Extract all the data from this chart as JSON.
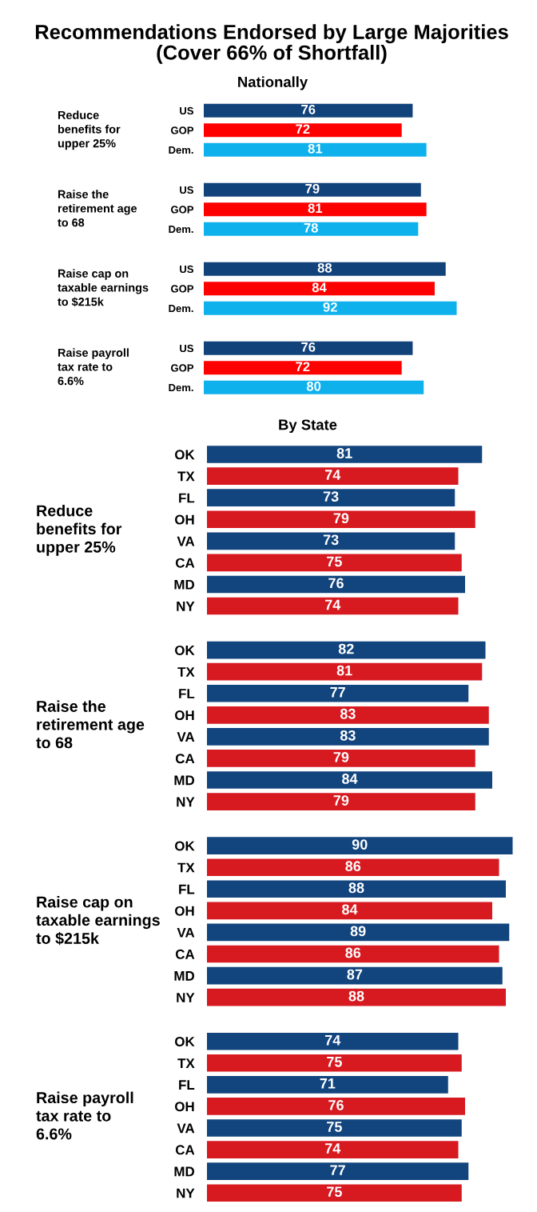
{
  "chart_data": [
    {
      "type": "bar",
      "orientation": "horizontal",
      "title": "Recommendations Endorsed by Large Majorities\n(Cover 66% of Shortfall)",
      "subtitle": "Nationally",
      "ylabel": "Reduce\nbenefits for\nupper 25%",
      "categories": [
        "US",
        "GOP",
        "Dem."
      ],
      "values": [
        76,
        72,
        81
      ],
      "colors": [
        "#12427a",
        "#fe0000",
        "#0eb1ec"
      ],
      "tick_labels": "y",
      "data_labels": true
    },
    {
      "type": "bar",
      "orientation": "horizontal",
      "ylabel": "Raise the\nretirement age\nto 68",
      "categories": [
        "US",
        "GOP",
        "Dem."
      ],
      "values": [
        79,
        81,
        78
      ],
      "colors": [
        "#12427a",
        "#fe0000",
        "#0eb1ec"
      ],
      "tick_labels": "y",
      "data_labels": true
    },
    {
      "type": "bar",
      "orientation": "horizontal",
      "ylabel": "Raise cap on\ntaxable earnings\nto $215k",
      "categories": [
        "US",
        "GOP",
        "Dem."
      ],
      "values": [
        88,
        84,
        92
      ],
      "colors": [
        "#12427a",
        "#fe0000",
        "#0eb1ec"
      ],
      "tick_labels": "y",
      "data_labels": true
    },
    {
      "type": "bar",
      "orientation": "horizontal",
      "ylabel": "Raise payroll\ntax rate to\n6.6%",
      "categories": [
        "US",
        "GOP",
        "Dem."
      ],
      "values": [
        76,
        72,
        80
      ],
      "colors": [
        "#12427a",
        "#fe0000",
        "#0eb1ec"
      ],
      "tick_labels": "y",
      "data_labels": true
    },
    {
      "type": "bar",
      "orientation": "horizontal",
      "subtitle": "By State",
      "ylabel": "Reduce\nbenefits for\nupper 25%",
      "categories": [
        "OK",
        "TX",
        "FL",
        "OH",
        "VA",
        "CA",
        "MD",
        "NY"
      ],
      "values": [
        81,
        74,
        73,
        79,
        73,
        75,
        76,
        74
      ],
      "colors": [
        "#12447e",
        "#d71920",
        "#12447e",
        "#d71920",
        "#12447e",
        "#d71920",
        "#12447e",
        "#d71920"
      ],
      "tick_labels": "y",
      "data_labels": true
    },
    {
      "type": "bar",
      "orientation": "horizontal",
      "ylabel": "Raise the\nretirement age\nto 68",
      "categories": [
        "OK",
        "TX",
        "FL",
        "OH",
        "VA",
        "CA",
        "MD",
        "NY"
      ],
      "values": [
        82,
        81,
        77,
        83,
        83,
        79,
        84,
        79
      ],
      "colors": [
        "#12447e",
        "#d71920",
        "#12447e",
        "#d71920",
        "#12447e",
        "#d71920",
        "#12447e",
        "#d71920"
      ],
      "tick_labels": "y",
      "data_labels": true
    },
    {
      "type": "bar",
      "orientation": "horizontal",
      "ylabel": "Raise cap on\ntaxable earnings\nto $215k",
      "categories": [
        "OK",
        "TX",
        "FL",
        "OH",
        "VA",
        "CA",
        "MD",
        "NY"
      ],
      "values": [
        90,
        86,
        88,
        84,
        89,
        86,
        87,
        88
      ],
      "colors": [
        "#12447e",
        "#d71920",
        "#12447e",
        "#d71920",
        "#12447e",
        "#d71920",
        "#12447e",
        "#d71920"
      ],
      "tick_labels": "y",
      "data_labels": true
    },
    {
      "type": "bar",
      "orientation": "horizontal",
      "ylabel": "Raise payroll\ntax rate to\n6.6%",
      "categories": [
        "OK",
        "TX",
        "FL",
        "OH",
        "VA",
        "CA",
        "MD",
        "NY"
      ],
      "values": [
        74,
        75,
        71,
        76,
        75,
        74,
        77,
        75
      ],
      "colors": [
        "#12447e",
        "#d71920",
        "#12447e",
        "#d71920",
        "#12447e",
        "#d71920",
        "#12447e",
        "#d71920"
      ],
      "tick_labels": "y",
      "data_labels": true
    }
  ]
}
